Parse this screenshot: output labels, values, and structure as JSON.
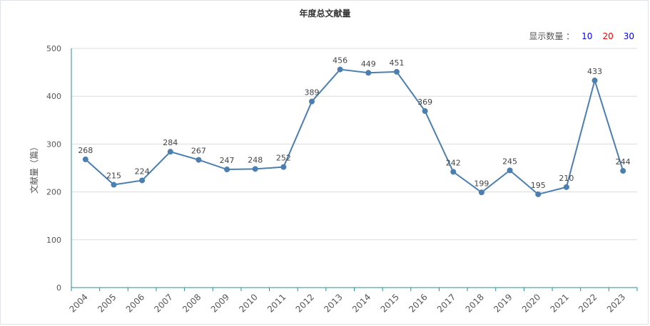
{
  "chart_data": {
    "type": "line",
    "title": "年度总文献量",
    "ylabel": "文献量（篇）",
    "xlabel": "",
    "categories": [
      "2004",
      "2005",
      "2006",
      "2007",
      "2008",
      "2009",
      "2010",
      "2011",
      "2012",
      "2013",
      "2014",
      "2015",
      "2016",
      "2017",
      "2018",
      "2019",
      "2020",
      "2021",
      "2022",
      "2023"
    ],
    "series": [
      {
        "values": [
          268,
          215,
          224,
          284,
          267,
          247,
          248,
          252,
          389,
          456,
          449,
          451,
          369,
          242,
          199,
          245,
          195,
          210,
          433,
          244
        ]
      }
    ],
    "ylim": [
      0,
      500
    ],
    "yticks": [
      0,
      100,
      200,
      300,
      400,
      500
    ],
    "grid": true,
    "line_color": "#4a7fb0"
  },
  "controls": {
    "display_count_label": "显示数量 ：",
    "options": [
      {
        "label": "10",
        "color": "#0000ee"
      },
      {
        "label": "20",
        "color": "#ee0000"
      },
      {
        "label": "30",
        "color": "#0000ee"
      }
    ]
  }
}
